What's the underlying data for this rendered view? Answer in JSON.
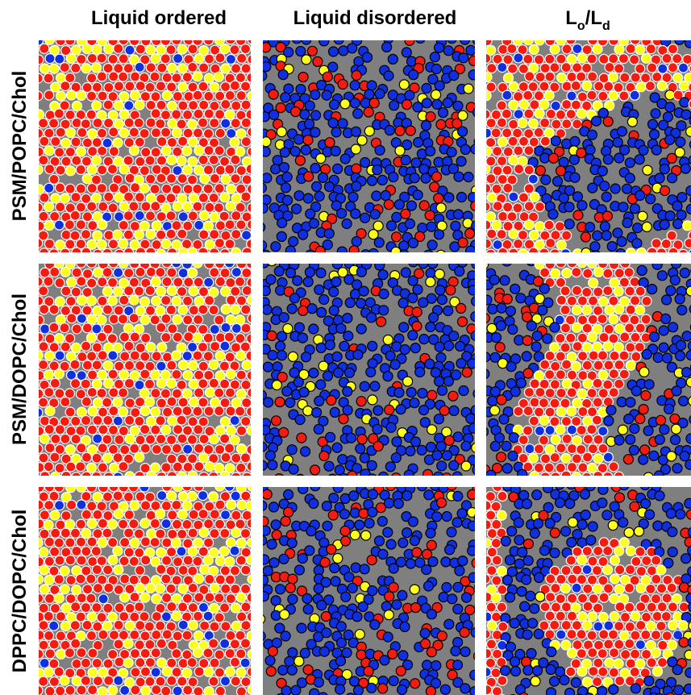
{
  "column_headers": [
    "Liquid ordered",
    "Liquid disordered"
  ],
  "mixed_header": {
    "base1": "L",
    "sub1": "o",
    "sep": "/",
    "base2": "L",
    "sub2": "d"
  },
  "row_labels": [
    "PSM/POPC/Chol",
    "PSM/DOPC/Chol",
    "DPPC/DOPC/Chol"
  ]
}
